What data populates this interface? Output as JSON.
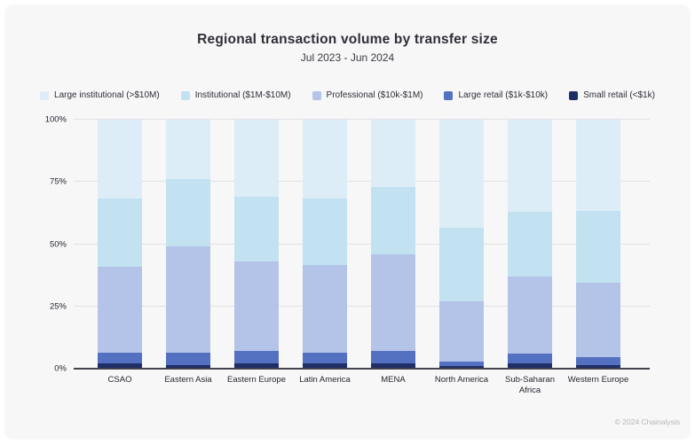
{
  "header": {
    "title": "Regional transaction volume by transfer size",
    "subtitle": "Jul 2023 - Jun 2024"
  },
  "footer": {
    "copyright": "© 2024 Chainalysis"
  },
  "chart_data": {
    "type": "bar",
    "stacked": true,
    "title": "Regional transaction volume by transfer size",
    "subtitle": "Jul 2023 - Jun 2024",
    "categories": [
      "CSAO",
      "Eastern Asia",
      "Eastern Europe",
      "Latin America",
      "MENA",
      "North America",
      "Sub-Saharan Africa",
      "Western Europe"
    ],
    "series": [
      {
        "name": "Large institutional (>$10M)",
        "color": "#ddedf8",
        "values": [
          31.5,
          24,
          31,
          31.5,
          27,
          43.5,
          37,
          36.5
        ]
      },
      {
        "name": "Institutional ($1M-$10M)",
        "color": "#c2e2f1",
        "values": [
          27.5,
          27,
          26,
          27,
          27,
          29.5,
          26,
          29
        ]
      },
      {
        "name": "Professional ($10k-$1M)",
        "color": "#b4c3e8",
        "values": [
          34.5,
          42.5,
          36,
          35,
          39,
          24,
          31,
          30
        ]
      },
      {
        "name": "Large retail ($1k-$10k)",
        "color": "#5470c0",
        "values": [
          4.5,
          5,
          5,
          4.5,
          5,
          2,
          4,
          3
        ]
      },
      {
        "name": "Small retail (<$1k)",
        "color": "#1f2f66",
        "values": [
          2,
          1.5,
          2,
          2,
          2,
          1,
          2,
          1.5
        ]
      }
    ],
    "xlabel": "",
    "ylabel": "",
    "y_ticks": [
      "0%",
      "25%",
      "50%",
      "75%",
      "100%"
    ],
    "ylim": [
      0,
      100
    ],
    "grid": true,
    "legend_position": "top",
    "gridline_color": "#e2e2e5",
    "axis_color": "#43434b",
    "background_color": "#f7f7f8"
  }
}
